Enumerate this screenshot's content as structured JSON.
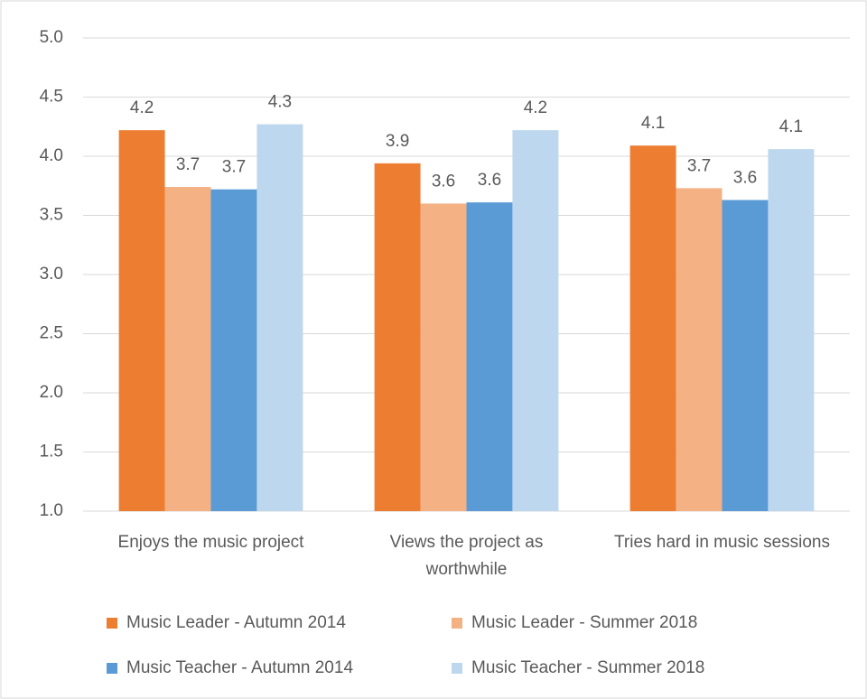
{
  "chart_data": {
    "type": "bar",
    "categories": [
      "Enjoys the music project",
      "Views the project as worthwhile",
      "Tries hard in music sessions"
    ],
    "series": [
      {
        "name": "Music Leader - Autumn 2014",
        "color": "#ed7d31",
        "values": [
          4.22,
          3.94,
          4.09
        ],
        "value_labels": [
          "4.2",
          "3.9",
          "4.1"
        ]
      },
      {
        "name": "Music Leader - Summer 2018",
        "color": "#f4b183",
        "values": [
          3.74,
          3.6,
          3.73
        ],
        "value_labels": [
          "3.7",
          "3.6",
          "3.7"
        ]
      },
      {
        "name": "Music Teacher - Autumn 2014",
        "color": "#5b9bd5",
        "values": [
          3.72,
          3.61,
          3.63
        ],
        "value_labels": [
          "3.7",
          "3.6",
          "3.6"
        ]
      },
      {
        "name": "Music Teacher - Summer 2018",
        "color": "#bdd7ee",
        "values": [
          4.27,
          4.22,
          4.06
        ],
        "value_labels": [
          "4.3",
          "4.2",
          "4.1"
        ]
      }
    ],
    "ylim": [
      1,
      5
    ],
    "yticks": [
      {
        "value": 1,
        "label": "1.0"
      },
      1.5,
      {
        "value": 2,
        "label": "2.0"
      },
      2.5,
      {
        "value": 3,
        "label": "3.0"
      },
      3.5,
      {
        "value": 4,
        "label": "4.0"
      },
      4.5,
      {
        "value": 5,
        "label": "5.0"
      }
    ],
    "grid": true,
    "legend": "bottom"
  }
}
